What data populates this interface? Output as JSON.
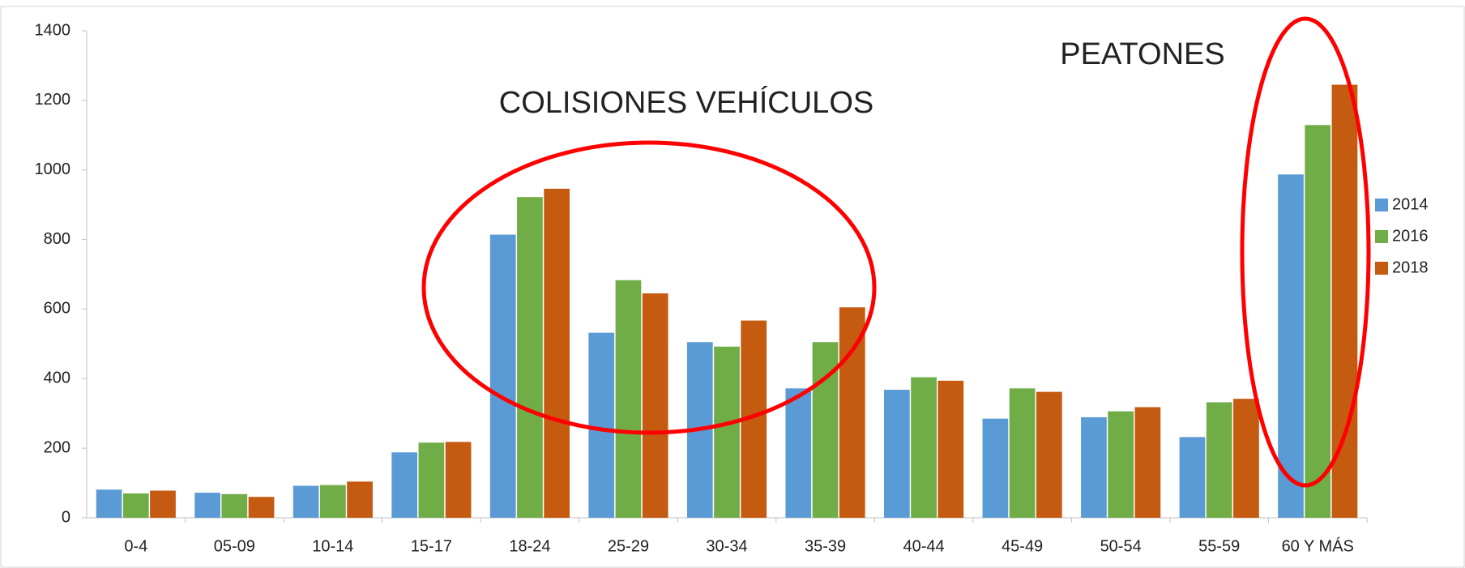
{
  "chart_data": {
    "type": "bar",
    "categories": [
      "0-4",
      "05-09",
      "10-14",
      "15-17",
      "18-24",
      "25-29",
      "30-34",
      "35-39",
      "40-44",
      "45-49",
      "50-54",
      "55-59",
      "60 Y MÁS"
    ],
    "series": [
      {
        "name": "2014",
        "color": "#5b9bd5",
        "values": [
          81,
          72,
          92,
          188,
          814,
          532,
          505,
          372,
          368,
          285,
          289,
          232,
          987
        ]
      },
      {
        "name": "2016",
        "color": "#70ad47",
        "values": [
          70,
          68,
          94,
          216,
          922,
          683,
          492,
          505,
          404,
          372,
          306,
          332,
          1129
        ]
      },
      {
        "name": "2018",
        "color": "#c55a11",
        "values": [
          78,
          60,
          104,
          218,
          946,
          645,
          567,
          605,
          394,
          362,
          318,
          342,
          1245
        ]
      }
    ],
    "ylim": [
      0,
      1400
    ],
    "yticks": [
      0,
      200,
      400,
      600,
      800,
      1000,
      1200,
      1400
    ],
    "grid": false,
    "legend": "right",
    "annotations": [
      "COLISIONES VEHÍCULOS",
      "PEATONES"
    ]
  }
}
